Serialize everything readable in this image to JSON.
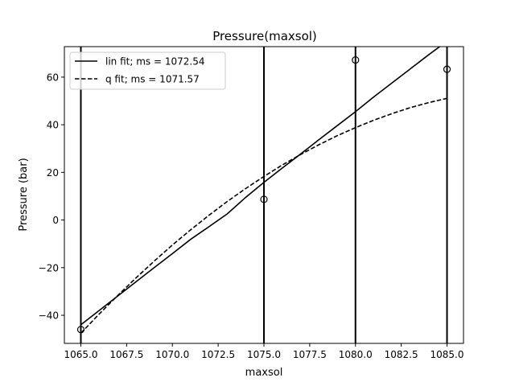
{
  "chart_data": {
    "type": "line",
    "title": "Pressure(maxsol)",
    "xlabel": "maxsol",
    "ylabel": "Pressure (bar)",
    "xlim": [
      1064.1,
      1085.9
    ],
    "ylim": [
      -51.8,
      72.8
    ],
    "xticks": [
      1065.0,
      1067.5,
      1070.0,
      1072.5,
      1075.0,
      1077.5,
      1080.0,
      1082.5,
      1085.0
    ],
    "xtick_labels": [
      "1065.0",
      "1067.5",
      "1070.0",
      "1072.5",
      "1075.0",
      "1077.5",
      "1080.0",
      "1082.5",
      "1085.0"
    ],
    "yticks": [
      -40,
      -20,
      0,
      20,
      40,
      60
    ],
    "ytick_labels": [
      "−40",
      "−20",
      "0",
      "20",
      "40",
      "60"
    ],
    "grid": false,
    "legend_position": "top-left",
    "vertical_lines": [
      1065,
      1075,
      1080,
      1085
    ],
    "points": {
      "marker": "open-circle",
      "x": [
        1065,
        1075,
        1080,
        1085
      ],
      "y": [
        -46.0,
        8.7,
        67.2,
        63.3
      ]
    },
    "series": [
      {
        "name": "lin fit; ms = 1072.54",
        "style": "solid",
        "x": [
          1065,
          1066,
          1067,
          1068,
          1069,
          1070,
          1071,
          1072,
          1073,
          1074,
          1075,
          1076,
          1077,
          1078,
          1079,
          1080,
          1081,
          1082,
          1083,
          1084,
          1084.6
        ],
        "y": [
          -44.0,
          -38.0,
          -32.0,
          -26.0,
          -20.0,
          -14.1,
          -8.1,
          -2.8,
          2.6,
          9.5,
          15.8,
          21.8,
          27.7,
          33.7,
          39.6,
          45.5,
          51.7,
          57.6,
          63.5,
          69.4,
          72.8
        ]
      },
      {
        "name": "q fit; ms = 1071.57",
        "style": "dashed",
        "x": [
          1065,
          1066,
          1067,
          1068,
          1069,
          1070,
          1071,
          1072,
          1073,
          1074,
          1075,
          1076,
          1077,
          1078,
          1079,
          1080,
          1081,
          1082,
          1083,
          1084,
          1085
        ],
        "y": [
          -47.5,
          -39.5,
          -31.8,
          -24.4,
          -17.3,
          -10.5,
          -4.1,
          2.0,
          7.8,
          13.2,
          18.3,
          23.1,
          27.5,
          31.6,
          35.4,
          38.8,
          41.9,
          44.7,
          47.2,
          49.3,
          51.1
        ]
      }
    ]
  }
}
